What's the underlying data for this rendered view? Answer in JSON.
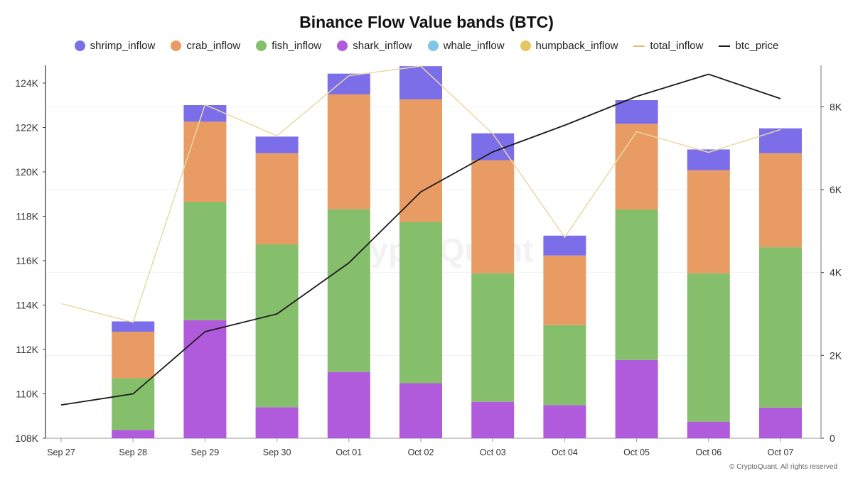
{
  "chart_data": {
    "type": "bar",
    "title": "Binance Flow Value bands (BTC)",
    "watermark": "CryptoQuant",
    "copyright": "© CryptoQuant. All rights reserved",
    "categories": [
      "Sep 27",
      "Sep 28",
      "Sep 29",
      "Sep 30",
      "Oct 01",
      "Oct 02",
      "Oct 03",
      "Oct 04",
      "Oct 05",
      "Oct 06",
      "Oct 07"
    ],
    "left_axis": {
      "ylim": [
        108000,
        124800
      ],
      "ticks": [
        108000,
        110000,
        112000,
        114000,
        116000,
        118000,
        120000,
        122000,
        124000
      ],
      "tick_labels": [
        "108K",
        "110K",
        "112K",
        "114K",
        "116K",
        "118K",
        "120K",
        "122K",
        "124K"
      ]
    },
    "right_axis": {
      "ylim": [
        0,
        9000
      ],
      "ticks": [
        0,
        2000,
        4000,
        6000,
        8000
      ],
      "tick_labels": [
        "0",
        "2K",
        "4K",
        "6K",
        "8K"
      ]
    },
    "stacked_series": [
      {
        "name": "shark_inflow",
        "color": "#b05bdc",
        "axis": "right",
        "values": [
          0,
          200,
          2850,
          750,
          1600,
          1330,
          880,
          800,
          1890,
          400,
          740
        ]
      },
      {
        "name": "fish_inflow",
        "color": "#86bf6c",
        "axis": "right",
        "values": [
          0,
          1250,
          2850,
          3930,
          3930,
          3890,
          3100,
          1930,
          3630,
          3580,
          3870
        ]
      },
      {
        "name": "crab_inflow",
        "color": "#e89c63",
        "axis": "right",
        "values": [
          0,
          1120,
          1940,
          2200,
          2770,
          2960,
          2730,
          1680,
          2070,
          2490,
          2270
        ]
      },
      {
        "name": "shrimp_inflow",
        "color": "#7b6ee8",
        "axis": "right",
        "values": [
          0,
          250,
          400,
          400,
          500,
          800,
          650,
          480,
          570,
          500,
          600
        ]
      }
    ],
    "legend_only_series": [
      {
        "name": "whale_inflow",
        "color": "#7ec6e6"
      },
      {
        "name": "humpback_inflow",
        "color": "#e6c65e"
      }
    ],
    "line_series": [
      {
        "name": "total_inflow",
        "color": "#ead9a4",
        "axis": "right",
        "values": [
          3250,
          2800,
          8050,
          7300,
          8750,
          8980,
          7350,
          4850,
          7400,
          6900,
          7450
        ]
      },
      {
        "name": "btc_price",
        "color": "#1a1a1a",
        "axis": "left",
        "values": [
          109500,
          110000,
          112800,
          113600,
          115900,
          119100,
          120900,
          122100,
          123400,
          124400,
          123300
        ]
      }
    ],
    "legend": [
      "shrimp_inflow",
      "crab_inflow",
      "fish_inflow",
      "shark_inflow",
      "whale_inflow",
      "humpback_inflow",
      "total_inflow",
      "btc_price"
    ],
    "legend_position": "top-center",
    "grid": false
  }
}
